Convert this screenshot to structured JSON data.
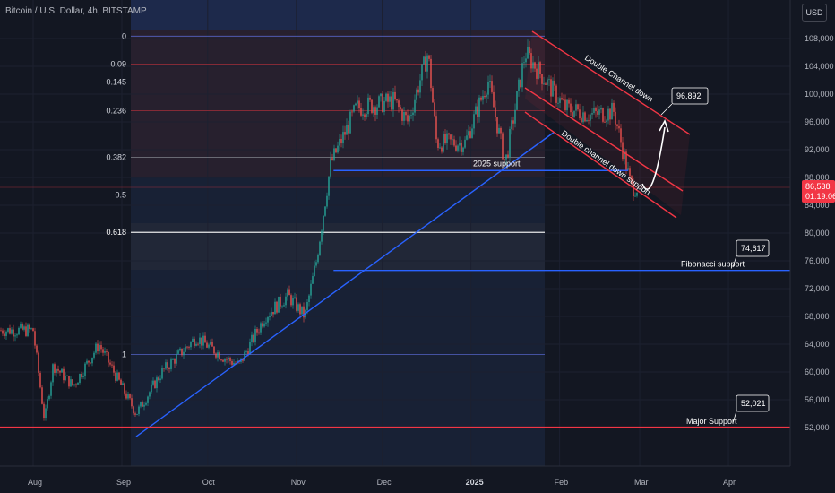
{
  "header": {
    "symbol_title": "Bitcoin / U.S. Dollar, 4h, BITSTAMP",
    "currency": "USD"
  },
  "price_axis": {
    "ticks": [
      108000,
      104000,
      100000,
      96000,
      92000,
      88000,
      84000,
      80000,
      76000,
      72000,
      68000,
      64000,
      60000,
      56000,
      52000
    ]
  },
  "time_axis": {
    "ticks": [
      "Aug",
      "Sep",
      "Oct",
      "Nov",
      "Dec",
      "2025",
      "Feb",
      "Mar",
      "Apr"
    ]
  },
  "current_price": {
    "value": "86,538",
    "countdown": "01:19:06"
  },
  "fibonacci": {
    "levels": [
      {
        "label": "0",
        "price": 108350
      },
      {
        "label": "0.09",
        "price": 104300
      },
      {
        "label": "0.145",
        "price": 101760
      },
      {
        "label": "0.236",
        "price": 97600
      },
      {
        "label": "0.382",
        "price": 90900
      },
      {
        "label": "0.5",
        "price": 85500
      },
      {
        "label": "0.618",
        "price": 80100
      },
      {
        "label": "1",
        "price": 62500
      }
    ]
  },
  "annotations": {
    "channel_label": "Double Channel down",
    "channel_support_label": "Double channel down support",
    "support_2025_label": "2025 support",
    "fib_support_label": "Fibonacci support",
    "major_support_label": "Major Support",
    "target_price": "96,892",
    "fib_support_price": "74,617",
    "major_support_price": "52,021"
  },
  "colors": {
    "up": "#26a69a",
    "down": "#ef5350",
    "trend": "#2962ff",
    "major": "#f23645",
    "bg": "#131722"
  },
  "chart_data": {
    "type": "candlestick",
    "title": "Bitcoin / U.S. Dollar, 4h, BITSTAMP",
    "x": [
      "2024-08-01",
      "2024-08-05",
      "2024-08-08",
      "2024-08-15",
      "2024-08-24",
      "2024-09-06",
      "2024-09-15",
      "2024-09-27",
      "2024-10-07",
      "2024-10-12",
      "2024-10-21",
      "2024-10-29",
      "2024-11-04",
      "2024-11-08",
      "2024-11-13",
      "2024-11-22",
      "2024-12-05",
      "2024-12-10",
      "2024-12-17",
      "2024-12-20",
      "2024-12-30",
      "2025-01-07",
      "2025-01-13",
      "2025-01-20",
      "2025-01-27",
      "2025-02-03",
      "2025-02-12",
      "2025-02-20",
      "2025-02-25",
      "2025-02-26"
    ],
    "close": [
      66000,
      53000,
      61000,
      58000,
      64000,
      54000,
      60000,
      65000,
      62000,
      61000,
      68000,
      71000,
      68000,
      76000,
      90000,
      98000,
      99000,
      96000,
      106000,
      93000,
      93000,
      102000,
      90000,
      106000,
      102000,
      98000,
      97000,
      97500,
      88500,
      86538
    ],
    "ylim": [
      48000,
      110000
    ],
    "channel": {
      "label": "Double Channel down",
      "target": 96892
    },
    "supports": [
      {
        "label": "2025 support",
        "price": 89000
      },
      {
        "label": "Fibonacci support",
        "price": 74617
      },
      {
        "label": "Major Support",
        "price": 52021
      }
    ],
    "fib_levels": [
      0,
      0.09,
      0.145,
      0.236,
      0.382,
      0.5,
      0.618,
      1
    ]
  }
}
